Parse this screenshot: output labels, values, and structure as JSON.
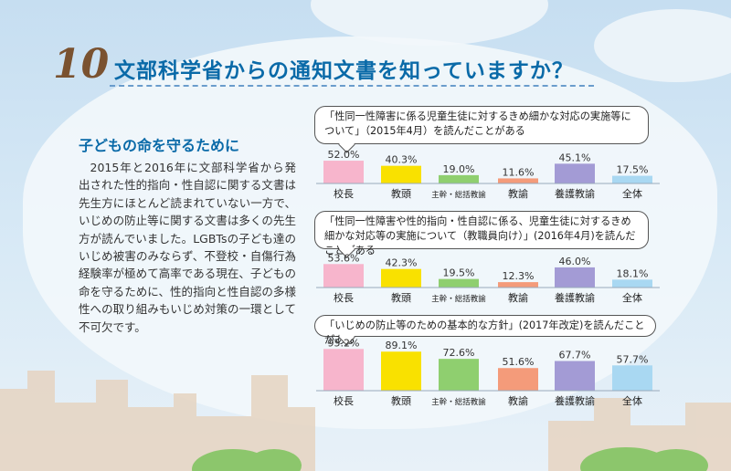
{
  "header": {
    "number": "10",
    "title": "文部科学省からの通知文書を知っていますか？"
  },
  "article": {
    "subheading": "子どもの命を守るために",
    "body": "2015年と2016年に文部科学省から発出された性的指向・性自認に関する文書は先生方にほとんど読まれていない一方で、いじめの防止等に関する文書は多くの先生方が読んでいました。LGBTsの子ども達のいじめ被害のみならず、不登校・自傷行為経験率が極めて高率である現在、子どもの命を守るために、性的指向と性自認の多様性への取り組みもいじめ対策の一環として不可欠です。"
  },
  "colors": [
    "#f7b5cc",
    "#f9e100",
    "#8fcf6f",
    "#f49b7a",
    "#a39bd5",
    "#a9d8f2"
  ],
  "chart_data": [
    {
      "type": "bar",
      "title": "「性同一性障害に係る児童生徒に対するきめ細かな対応の実施等について」（2015年4月）を読んだことがある",
      "categories": [
        "校長",
        "教頭",
        "主幹・総括教諭",
        "教諭",
        "養護教諭",
        "全体"
      ],
      "values": [
        52.0,
        40.3,
        19.0,
        11.6,
        45.1,
        17.5
      ],
      "labels": [
        "52.0%",
        "40.3%",
        "19.0%",
        "11.6%",
        "45.1%",
        "17.5%"
      ],
      "ylim": [
        0,
        100
      ]
    },
    {
      "type": "bar",
      "title": "「性同一性障害や性的指向・性自認に係る、児童生徒に対するきめ細かな対応等の実施について（教職員向け）」(2016年4月)を読んだことがある",
      "categories": [
        "校長",
        "教頭",
        "主幹・総括教諭",
        "教諭",
        "養護教諭",
        "全体"
      ],
      "values": [
        53.6,
        42.3,
        19.5,
        12.3,
        46.0,
        18.1
      ],
      "labels": [
        "53.6%",
        "42.3%",
        "19.5%",
        "12.3%",
        "46.0%",
        "18.1%"
      ],
      "ylim": [
        0,
        100
      ]
    },
    {
      "type": "bar",
      "title": "「いじめの防止等のための基本的な方針」(2017年改定)を読んだことがある",
      "categories": [
        "校長",
        "教頭",
        "主幹・総括教諭",
        "教諭",
        "養護教諭",
        "全体"
      ],
      "values": [
        95.2,
        89.1,
        72.6,
        51.6,
        67.7,
        57.7
      ],
      "labels": [
        "95.2%",
        "89.1%",
        "72.6%",
        "51.6%",
        "67.7%",
        "57.7%"
      ],
      "ylim": [
        0,
        100
      ]
    }
  ]
}
